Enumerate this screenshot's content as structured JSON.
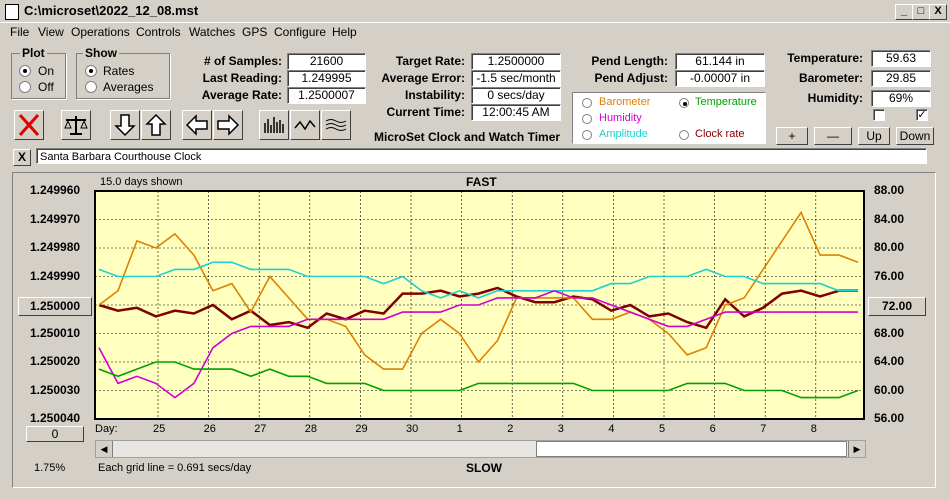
{
  "window": {
    "title": "C:\\microset\\2022_12_08.mst",
    "min_label": "_",
    "max_label": "□",
    "close_label": "X"
  },
  "menu": [
    "File",
    "View",
    "Operations",
    "Controls",
    "Watches",
    "GPS",
    "Configure",
    "Help"
  ],
  "plot_group": {
    "title": "Plot",
    "on": "On",
    "off": "Off",
    "selected": "On"
  },
  "show_group": {
    "title": "Show",
    "rates": "Rates",
    "averages": "Averages",
    "selected": "Rates"
  },
  "stats": {
    "samples_label": "# of Samples:",
    "samples": "21600",
    "last_label": "Last Reading:",
    "last": "1.249995",
    "avg_label": "Average Rate:",
    "avg": "1.2500007"
  },
  "rates": {
    "target_label": "Target Rate:",
    "target": "1.2500000",
    "error_label": "Average Error:",
    "error": "-1.5 sec/month",
    "instab_label": "Instability:",
    "instab": "0 secs/day",
    "time_label": "Current Time:",
    "time": "12:00:45 AM"
  },
  "pendulum": {
    "length_label": "Pend Length:",
    "length": "61.144 in",
    "adjust_label": "Pend Adjust:",
    "adjust": "-0.00007 in"
  },
  "env": {
    "temp_label": "Temperature:",
    "temp": "59.63",
    "baro_label": "Barometer:",
    "baro": "29.85",
    "hum_label": "Humidity:",
    "hum": "69%"
  },
  "app_name": "MicroSet Clock and Watch Timer",
  "aux_options": [
    {
      "label": "Barometer",
      "color": "#e08000",
      "selected": false
    },
    {
      "label": "Temperature",
      "color": "#00a000",
      "selected": true
    },
    {
      "label": "Humidity",
      "color": "#d000d0",
      "selected": false
    },
    {
      "label": "Amplitude",
      "color": "#20d0d0",
      "selected": false
    },
    {
      "label": "Clock rate",
      "color": "#800000",
      "selected": false
    }
  ],
  "adjust_buttons": [
    "+",
    "—",
    "Up",
    "Down"
  ],
  "clock_name": "Santa Barbara Courthouse Clock",
  "clear_label": "X",
  "chart_header": {
    "days_shown": "15.0 days shown",
    "fast": "FAST",
    "slow": "SLOW",
    "grid_note": "Each grid line = 0.691 secs/day",
    "percent": "1.75%",
    "day_label": "Day:",
    "zero_btn": "0",
    "center_btn": "1.250000",
    "right_btn": "72.00"
  },
  "chart_data": {
    "type": "line",
    "x_ticks": [
      "25",
      "26",
      "27",
      "28",
      "29",
      "30",
      "1",
      "2",
      "3",
      "4",
      "5",
      "6",
      "7",
      "8"
    ],
    "left_axis_ticks": [
      "1.249960",
      "1.249970",
      "1.249980",
      "1.249990",
      "1.250000",
      "1.250010",
      "1.250020",
      "1.250030",
      "1.250040"
    ],
    "right_axis_ticks": [
      "88.00",
      "84.00",
      "80.00",
      "76.00",
      "72.00",
      "68.00",
      "64.00",
      "60.00",
      "56.00"
    ],
    "ylim_left": [
      1.24996,
      1.25004
    ],
    "ylim_right": [
      56,
      88
    ],
    "grid": true,
    "series": [
      {
        "name": "Clock rate",
        "color": "#800000",
        "axis": "left",
        "values": [
          1.25,
          1.250002,
          1.250001,
          1.250004,
          1.250002,
          1.250003,
          1.25,
          1.250005,
          1.250002,
          1.250007,
          1.250006,
          1.250008,
          1.250003,
          1.250005,
          1.250002,
          1.250003,
          1.249996,
          1.249996,
          1.249995,
          1.249997,
          1.249996,
          1.249994,
          1.249997,
          1.249999,
          1.249999,
          1.249997,
          1.249998,
          1.250002,
          1.25,
          1.250004,
          1.250003,
          1.250006,
          1.250008,
          1.249998,
          1.250004,
          1.250001,
          1.249996,
          1.249995,
          1.249997,
          1.249995,
          1.249995
        ]
      },
      {
        "name": "Barometer",
        "color": "#e08000",
        "axis": "right",
        "values": [
          72,
          74,
          81,
          80,
          82,
          79,
          74,
          75,
          71,
          76,
          73,
          70,
          70,
          69,
          65,
          63,
          63,
          68,
          70,
          68,
          64,
          67,
          73,
          73,
          73,
          73,
          70,
          70,
          71,
          70,
          68,
          65,
          66,
          72,
          73,
          77,
          81,
          85,
          79,
          79,
          78
        ]
      },
      {
        "name": "Amplitude",
        "color": "#20d0d0",
        "axis": "right",
        "values": [
          77,
          76,
          76,
          76,
          77,
          77,
          78,
          78,
          77,
          77,
          77,
          76,
          76,
          76,
          76,
          75,
          76,
          74,
          73,
          74,
          73,
          74,
          74,
          74,
          74,
          74,
          74,
          75,
          75,
          76,
          76,
          76,
          77,
          76,
          76,
          75,
          75,
          75,
          75,
          74,
          74
        ]
      },
      {
        "name": "Humidity",
        "color": "#d000d0",
        "axis": "right",
        "values": [
          66,
          61,
          62,
          61,
          59,
          61,
          66,
          68,
          69,
          69,
          69,
          70,
          70,
          70,
          70,
          70,
          71,
          71,
          71,
          72,
          72,
          73,
          73,
          73,
          74,
          73,
          73,
          72,
          71,
          70,
          69,
          69,
          70,
          71,
          71,
          71,
          71,
          71,
          71,
          71,
          71
        ]
      },
      {
        "name": "Temperature",
        "color": "#00a000",
        "axis": "right",
        "values": [
          63,
          62,
          63,
          64,
          64,
          63,
          63,
          63,
          62,
          63,
          62,
          62,
          61,
          61,
          61,
          60,
          60,
          60,
          60,
          60,
          61,
          61,
          61,
          61,
          61,
          61,
          60,
          60,
          60,
          60,
          60,
          61,
          61,
          61,
          60,
          60,
          60,
          59,
          59,
          59,
          60
        ]
      }
    ]
  }
}
